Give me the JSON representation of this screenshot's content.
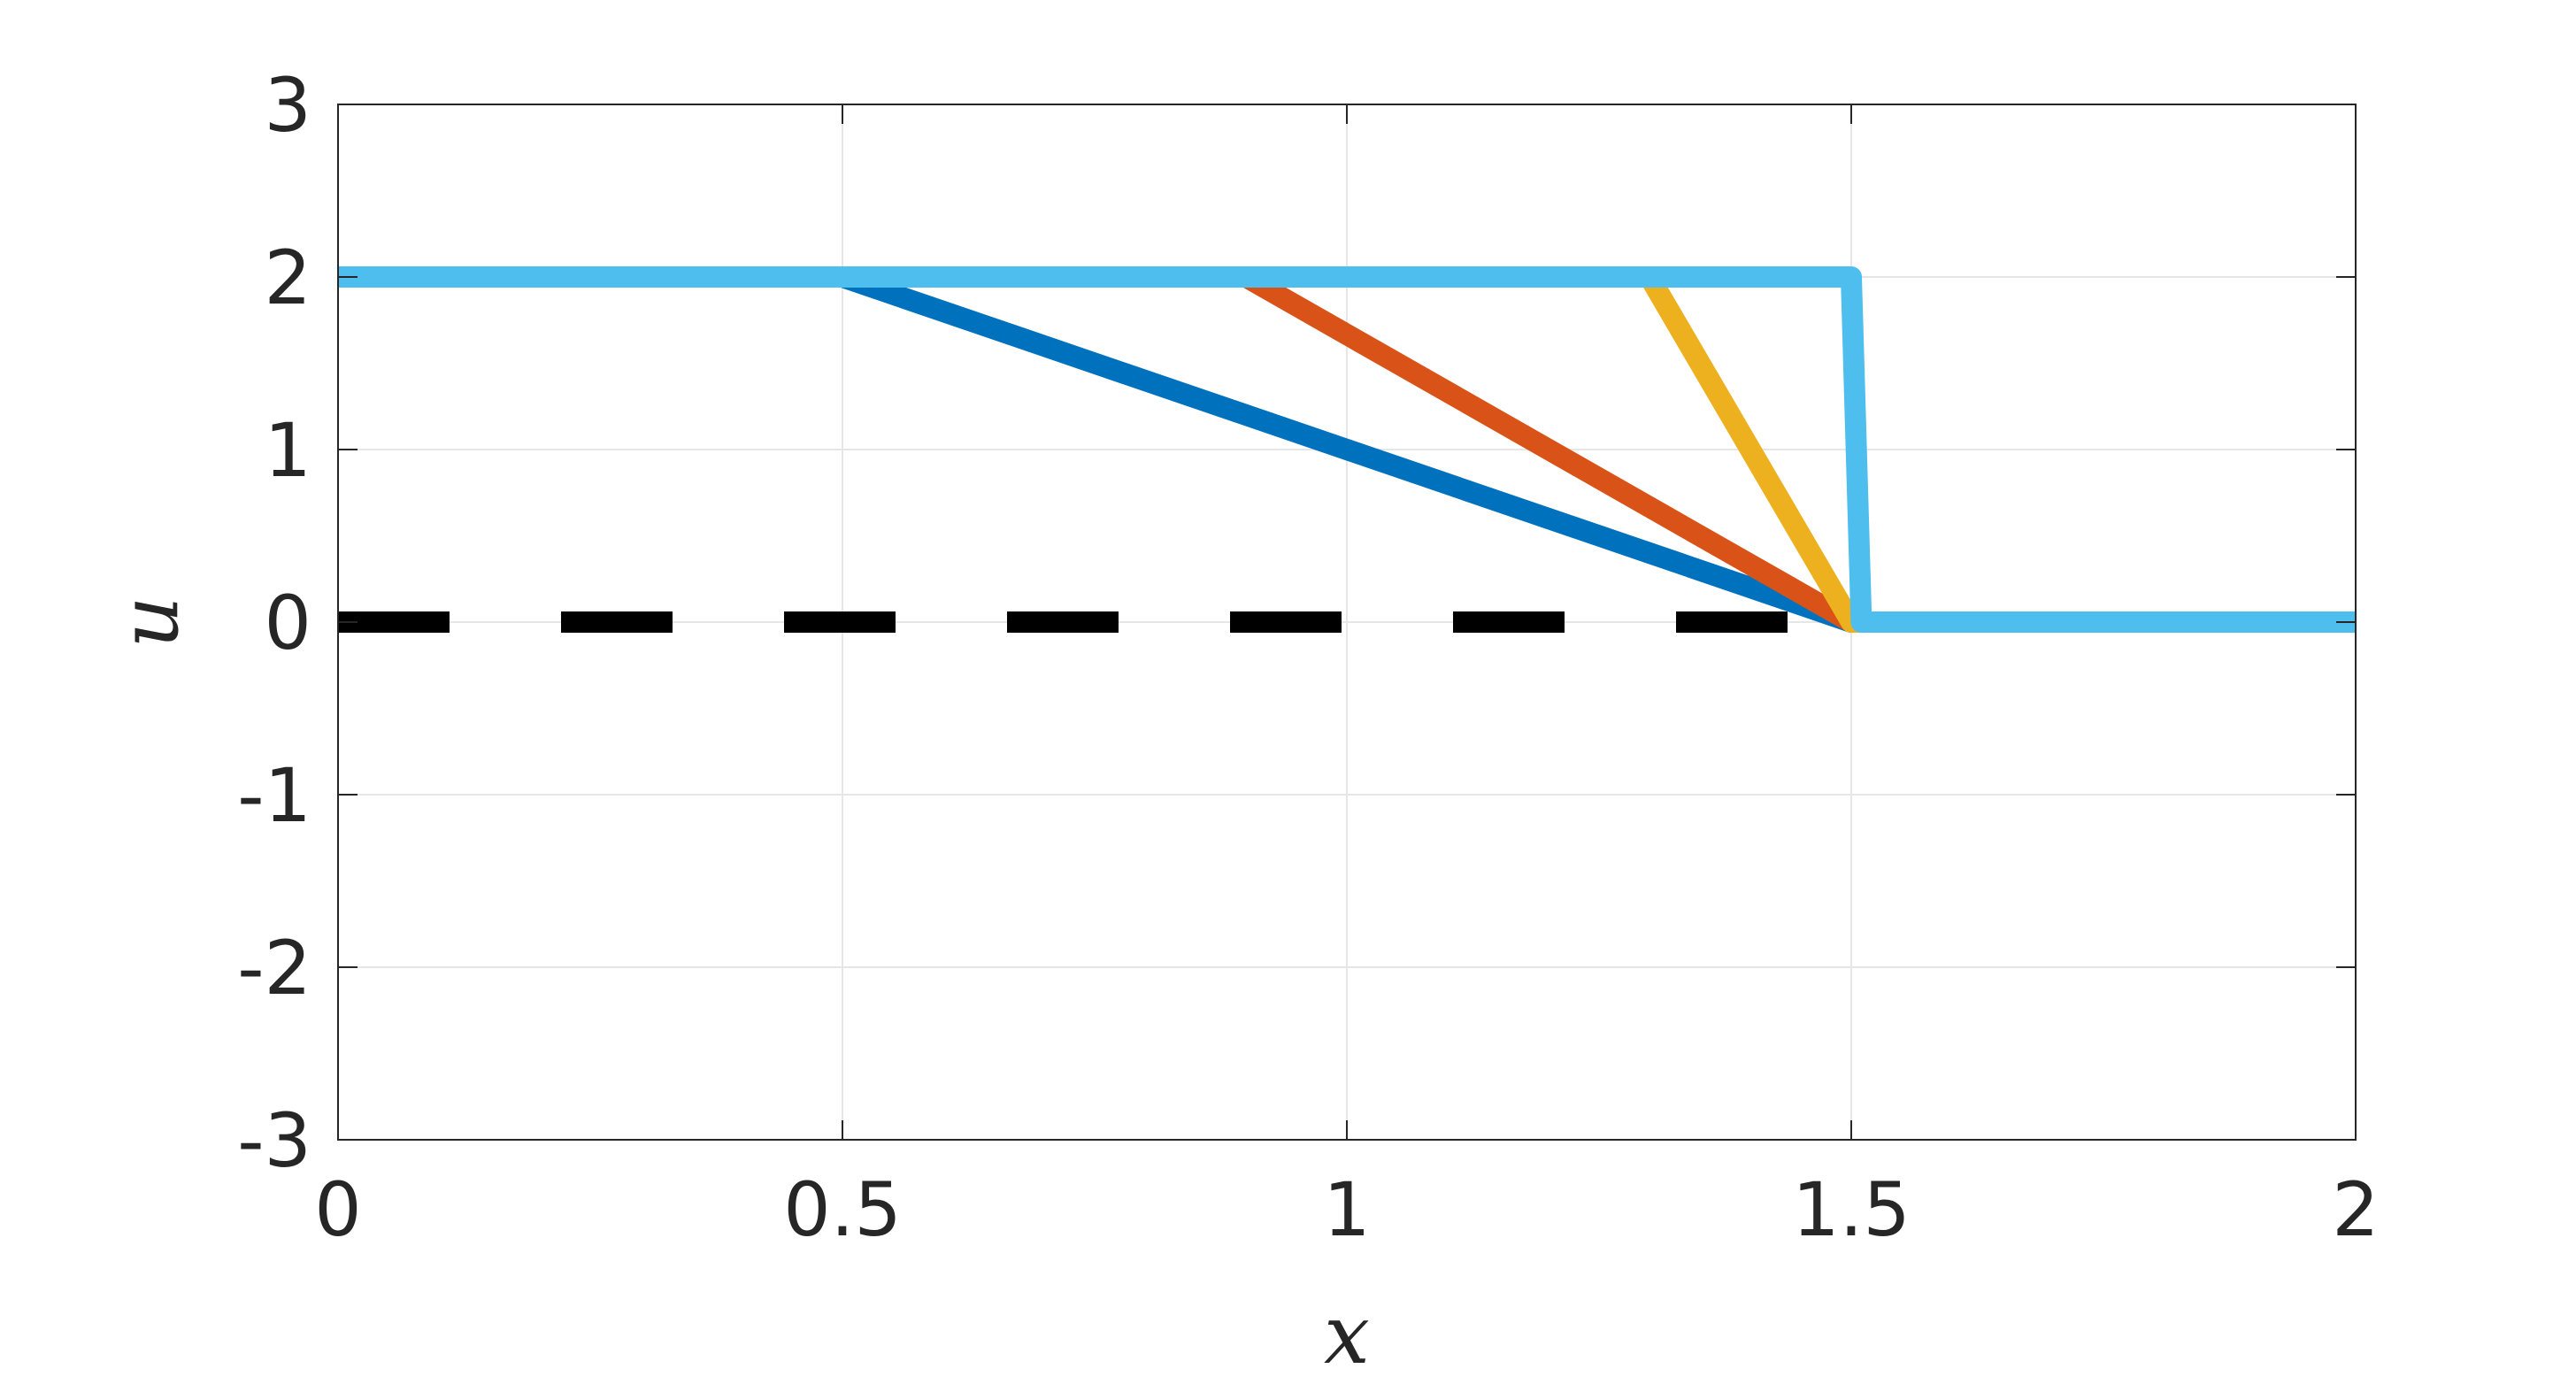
{
  "chart_data": {
    "type": "line",
    "title": "",
    "xlabel": "x",
    "ylabel": "u",
    "xlim": [
      0,
      2
    ],
    "ylim": [
      -3,
      3
    ],
    "xticks": [
      0,
      0.5,
      1,
      1.5,
      2
    ],
    "xtick_labels": [
      "0",
      "0.5",
      "1",
      "1.5",
      "2"
    ],
    "yticks": [
      -3,
      -2,
      -1,
      0,
      1,
      2,
      3
    ],
    "ytick_labels": [
      "-3",
      "-2",
      "-1",
      "0",
      "1",
      "2",
      "3"
    ],
    "grid": true,
    "legend": "none",
    "series": [
      {
        "color": "#000000",
        "style": "dashed",
        "x": [
          0,
          2
        ],
        "y": [
          0,
          0
        ]
      },
      {
        "color": "#0072BD",
        "style": "solid",
        "x": [
          0,
          0.5,
          1.5,
          2
        ],
        "y": [
          2,
          2,
          0,
          0
        ]
      },
      {
        "color": "#D95319",
        "style": "solid",
        "x": [
          0,
          0.9,
          1.5,
          2
        ],
        "y": [
          2,
          2,
          0,
          0
        ]
      },
      {
        "color": "#EDB120",
        "style": "solid",
        "x": [
          0,
          1.3,
          1.5,
          2
        ],
        "y": [
          2,
          2,
          0,
          0
        ]
      },
      {
        "color": "#4DBEEE",
        "style": "solid",
        "x": [
          0,
          1.5,
          1.51,
          2
        ],
        "y": [
          2,
          2,
          0,
          0
        ]
      }
    ]
  }
}
